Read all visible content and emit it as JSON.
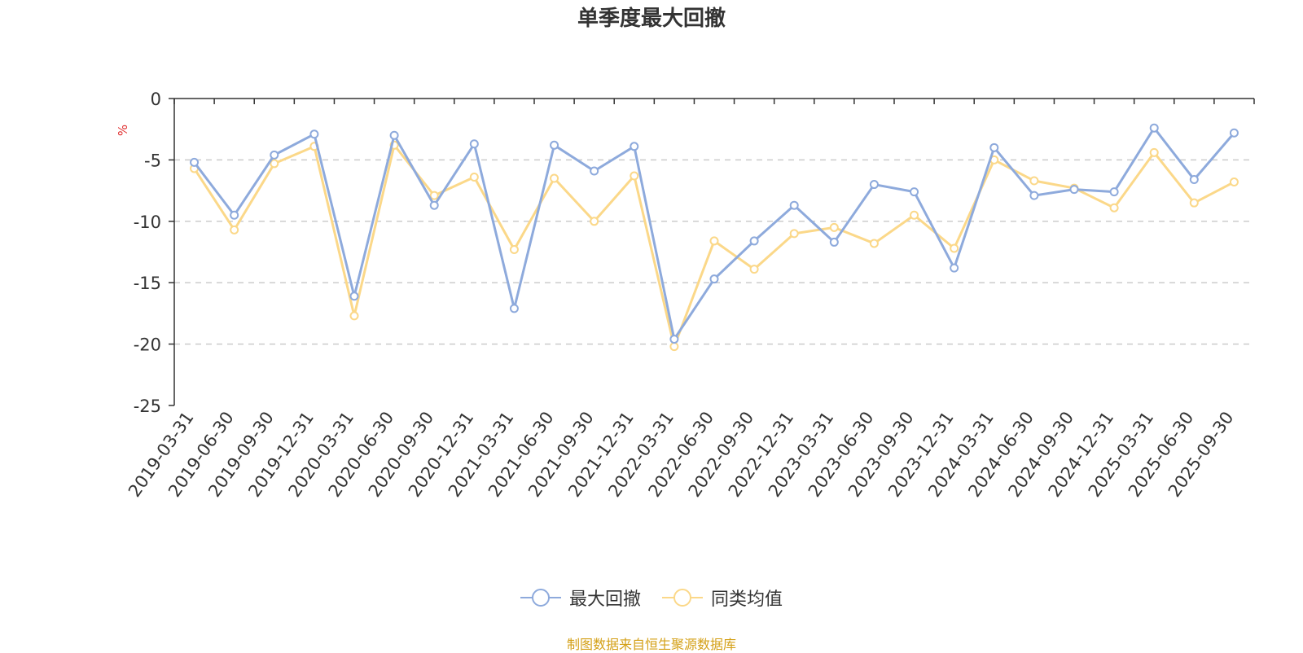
{
  "chart_data": {
    "type": "line",
    "title": "单季度最大回撤",
    "ylabel": "%",
    "ylim": [
      -25,
      0
    ],
    "yticks": [
      0,
      -5,
      -10,
      -15,
      -20,
      -25
    ],
    "grid": true,
    "legend_position": "bottom",
    "categories": [
      "2019-03-31",
      "2019-06-30",
      "2019-09-30",
      "2019-12-31",
      "2020-03-31",
      "2020-06-30",
      "2020-09-30",
      "2020-12-31",
      "2021-03-31",
      "2021-06-30",
      "2021-09-30",
      "2021-12-31",
      "2022-03-31",
      "2022-06-30",
      "2022-09-30",
      "2022-12-31",
      "2023-03-31",
      "2023-06-30",
      "2023-09-30",
      "2023-12-31",
      "2024-03-31",
      "2024-06-30",
      "2024-09-30",
      "2024-12-31",
      "2025-03-31",
      "2025-06-30",
      "2025-09-30"
    ],
    "series": [
      {
        "name": "最大回撤",
        "color": "#8eaadc",
        "values": [
          -5.2,
          -9.5,
          -4.6,
          -2.9,
          -16.1,
          -3.0,
          -8.7,
          -3.7,
          -17.1,
          -3.8,
          -5.9,
          -3.9,
          -19.6,
          -14.7,
          -11.6,
          -8.7,
          -11.7,
          -7.0,
          -7.6,
          -13.8,
          -4.0,
          -7.9,
          -7.4,
          -7.6,
          -2.4,
          -6.6,
          -2.8
        ]
      },
      {
        "name": "同类均值",
        "color": "#fbd889",
        "values": [
          -5.7,
          -10.7,
          -5.3,
          -3.9,
          -17.7,
          -3.8,
          -7.9,
          -6.4,
          -12.3,
          -6.5,
          -10.0,
          -6.3,
          -20.2,
          -11.6,
          -13.9,
          -11.0,
          -10.5,
          -11.8,
          -9.5,
          -12.2,
          -5.0,
          -6.7,
          -7.3,
          -8.9,
          -4.4,
          -8.5,
          -6.8
        ]
      }
    ]
  },
  "source_text": "制图数据来自恒生聚源数据库"
}
